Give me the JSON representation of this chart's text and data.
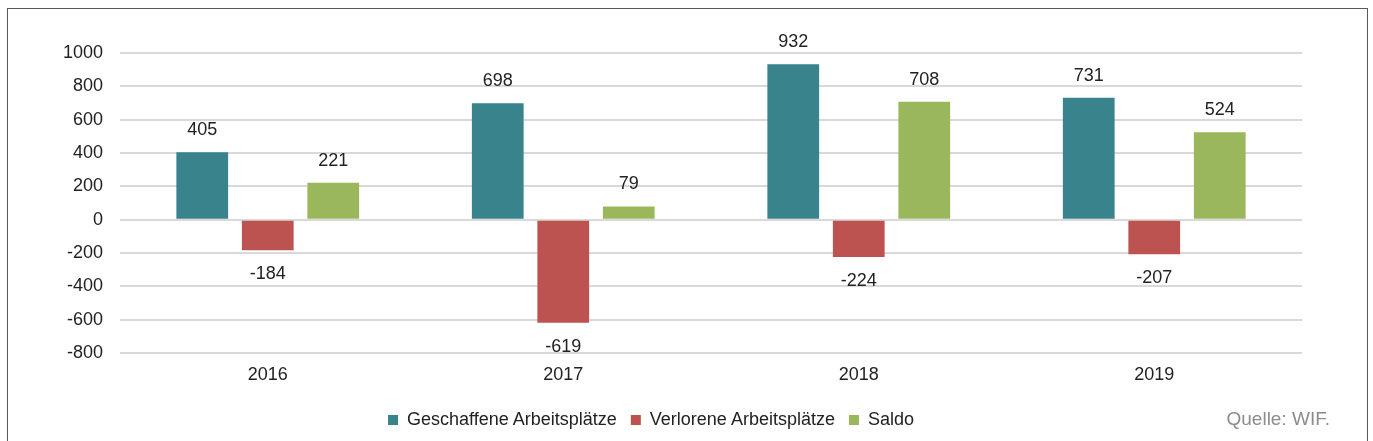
{
  "chart_data": {
    "type": "bar",
    "categories": [
      "2016",
      "2017",
      "2018",
      "2019"
    ],
    "series": [
      {
        "name": "Geschaffene Arbeitsplätze",
        "color": "#38838c",
        "values": [
          405,
          698,
          932,
          731
        ]
      },
      {
        "name": "Verlorene Arbeitsplätze",
        "color": "#bc5350",
        "values": [
          -184,
          -619,
          -224,
          -207
        ]
      },
      {
        "name": "Saldo",
        "color": "#9bb75b",
        "values": [
          221,
          79,
          708,
          524
        ]
      }
    ],
    "ylim": [
      -800,
      1000
    ],
    "yticks": [
      -800,
      -600,
      -400,
      -200,
      0,
      200,
      400,
      600,
      800,
      1000
    ],
    "grid": "y",
    "legend": "bottom",
    "data_labels": true,
    "annotations": [
      "Quelle: WIF."
    ]
  }
}
